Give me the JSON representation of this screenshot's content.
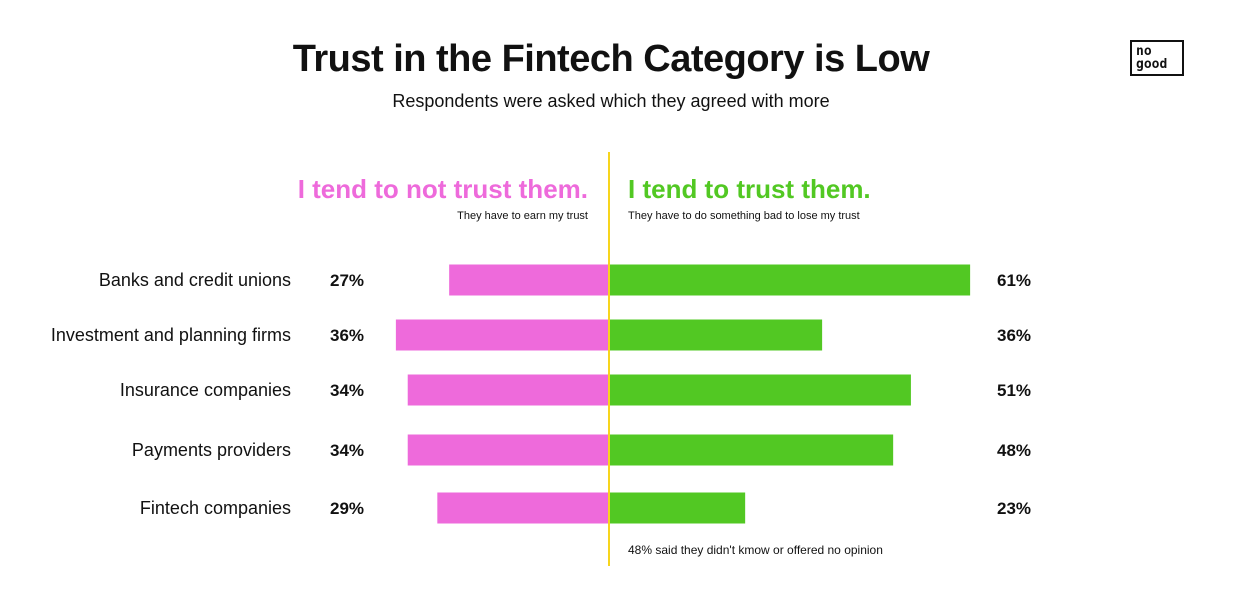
{
  "title": "Trust in the Fintech Category is Low",
  "subtitle": "Respondents were asked which they agreed with more",
  "logo": {
    "line1": "no",
    "line2": "good"
  },
  "chart_data": {
    "type": "bar",
    "orientation": "diverging-horizontal",
    "categories": [
      "Banks and credit unions",
      "Investment and planning firms",
      "Insurance companies",
      "Payments providers",
      "Fintech companies"
    ],
    "series": [
      {
        "name": "I tend to not trust them.",
        "description": "They have to earn my trust",
        "color": "#ee6adb",
        "side": "left",
        "values": [
          27,
          36,
          34,
          34,
          29
        ]
      },
      {
        "name": "I tend to trust them.",
        "description": "They have to do something bad to lose my trust",
        "color": "#52c823",
        "side": "right",
        "values": [
          61,
          36,
          51,
          48,
          23
        ]
      }
    ],
    "value_suffix": "%",
    "divider_color": "#f7d51d",
    "footnote": "48% said they didn't kmow or offered no opinion"
  }
}
